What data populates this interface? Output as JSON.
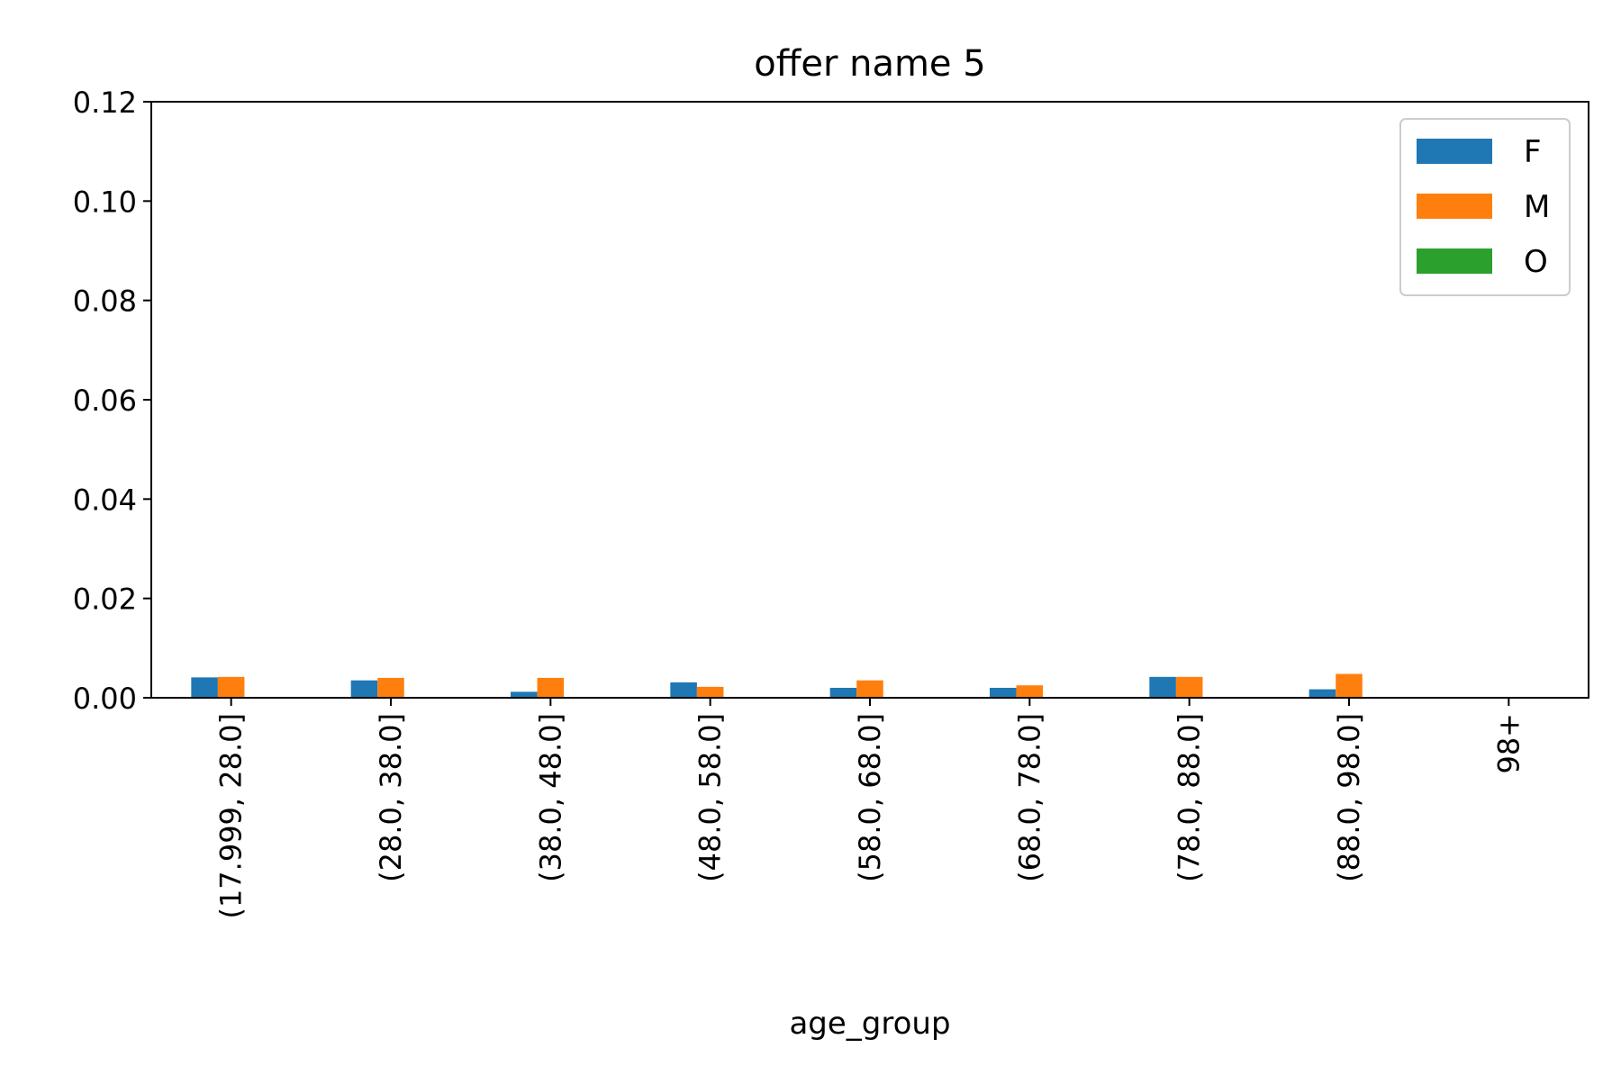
{
  "chart_data": {
    "type": "bar",
    "title": "offer name 5",
    "xlabel": "age_group",
    "ylabel": "",
    "ylim": [
      0,
      0.12
    ],
    "yticks": [
      "0.00",
      "0.02",
      "0.04",
      "0.06",
      "0.08",
      "0.10",
      "0.12"
    ],
    "categories": [
      "(17.999, 28.0]",
      "(28.0, 38.0]",
      "(38.0, 48.0]",
      "(48.0, 58.0]",
      "(58.0, 68.0]",
      "(68.0, 78.0]",
      "(78.0, 88.0]",
      "(88.0, 98.0]",
      "98+"
    ],
    "series": [
      {
        "name": "F",
        "color": "#1f77b4",
        "values": [
          0.0041,
          0.0035,
          0.0012,
          0.0031,
          0.002,
          0.002,
          0.0042,
          0.0017,
          0
        ]
      },
      {
        "name": "M",
        "color": "#ff7f0e",
        "values": [
          0.0042,
          0.004,
          0.004,
          0.0022,
          0.0035,
          0.0025,
          0.0042,
          0.0048,
          0
        ]
      },
      {
        "name": "O",
        "color": "#2ca02c",
        "values": [
          0,
          0,
          0,
          0,
          0,
          0,
          0,
          0,
          0
        ]
      }
    ],
    "grid": false,
    "legend_position": "top-right"
  }
}
